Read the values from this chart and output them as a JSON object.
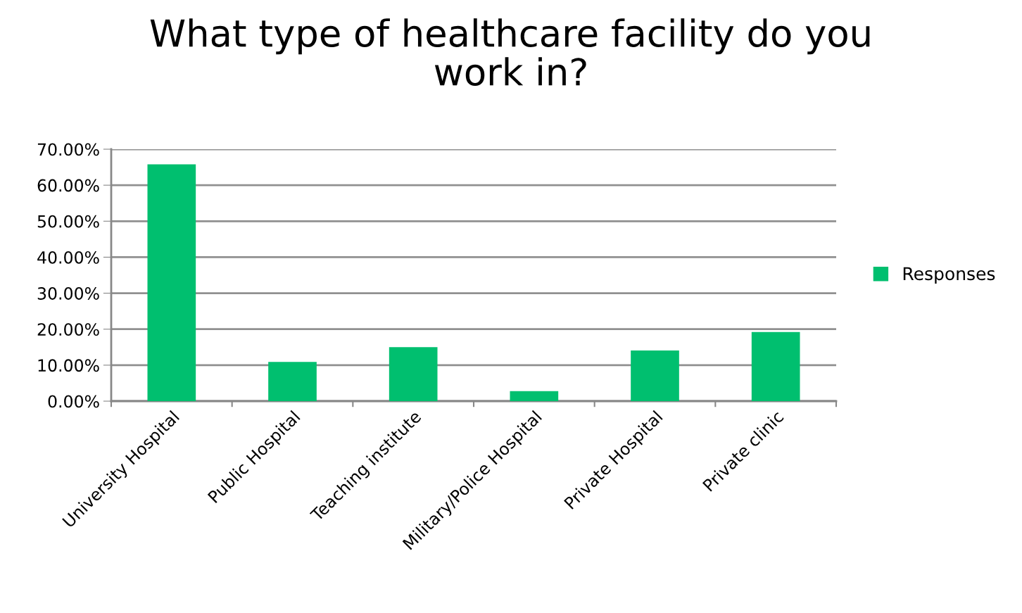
{
  "chart_data": {
    "type": "bar",
    "title": "What type of healthcare facility do you\nwork in?",
    "categories": [
      "University Hospital",
      "Public Hospital",
      "Teaching institute",
      "Military/Police Hospital",
      "Private Hospital",
      "Private clinic"
    ],
    "series": [
      {
        "name": "Responses",
        "color": "#00bf6f",
        "values": [
          65.8,
          10.9,
          15.0,
          2.8,
          14.1,
          19.2
        ]
      }
    ],
    "ylim": [
      0,
      70
    ],
    "yticks": [
      {
        "value": 0,
        "label": "0.00%"
      },
      {
        "value": 10,
        "label": "10.00%"
      },
      {
        "value": 20,
        "label": "20.00%"
      },
      {
        "value": 30,
        "label": "30.00%"
      },
      {
        "value": 40,
        "label": "40.00%"
      },
      {
        "value": 50,
        "label": "50.00%"
      },
      {
        "value": 60,
        "label": "60.00%"
      },
      {
        "value": 70,
        "label": "70.00%"
      }
    ],
    "grid": "y",
    "legend": "right"
  }
}
